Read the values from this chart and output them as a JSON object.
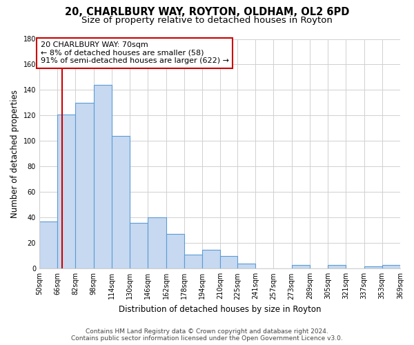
{
  "title": "20, CHARLBURY WAY, ROYTON, OLDHAM, OL2 6PD",
  "subtitle": "Size of property relative to detached houses in Royton",
  "xlabel": "Distribution of detached houses by size in Royton",
  "ylabel": "Number of detached properties",
  "bar_edges": [
    50,
    66,
    82,
    98,
    114,
    130,
    146,
    162,
    178,
    194,
    210,
    225,
    241,
    257,
    273,
    289,
    305,
    321,
    337,
    353,
    369
  ],
  "bar_heights": [
    37,
    121,
    130,
    144,
    104,
    36,
    40,
    27,
    11,
    15,
    10,
    4,
    0,
    0,
    3,
    0,
    3,
    0,
    2,
    3
  ],
  "bar_color": "#c6d9f0",
  "bar_edge_color": "#5b9bd5",
  "ylim": [
    0,
    180
  ],
  "yticks": [
    0,
    20,
    40,
    60,
    80,
    100,
    120,
    140,
    160,
    180
  ],
  "tick_labels": [
    "50sqm",
    "66sqm",
    "82sqm",
    "98sqm",
    "114sqm",
    "130sqm",
    "146sqm",
    "162sqm",
    "178sqm",
    "194sqm",
    "210sqm",
    "225sqm",
    "241sqm",
    "257sqm",
    "273sqm",
    "289sqm",
    "305sqm",
    "321sqm",
    "337sqm",
    "353sqm",
    "369sqm"
  ],
  "property_line_x": 70,
  "property_line_color": "#cc0000",
  "annotation_title": "20 CHARLBURY WAY: 70sqm",
  "annotation_line1": "← 8% of detached houses are smaller (58)",
  "annotation_line2": "91% of semi-detached houses are larger (622) →",
  "annotation_box_color": "#ffffff",
  "annotation_box_edgecolor": "#cc0000",
  "footer_line1": "Contains HM Land Registry data © Crown copyright and database right 2024.",
  "footer_line2": "Contains public sector information licensed under the Open Government Licence v3.0.",
  "bg_color": "#ffffff",
  "grid_color": "#d0d0d0",
  "title_fontsize": 10.5,
  "subtitle_fontsize": 9.5,
  "axis_label_fontsize": 8.5,
  "tick_fontsize": 7,
  "annotation_fontsize": 8,
  "footer_fontsize": 6.5
}
